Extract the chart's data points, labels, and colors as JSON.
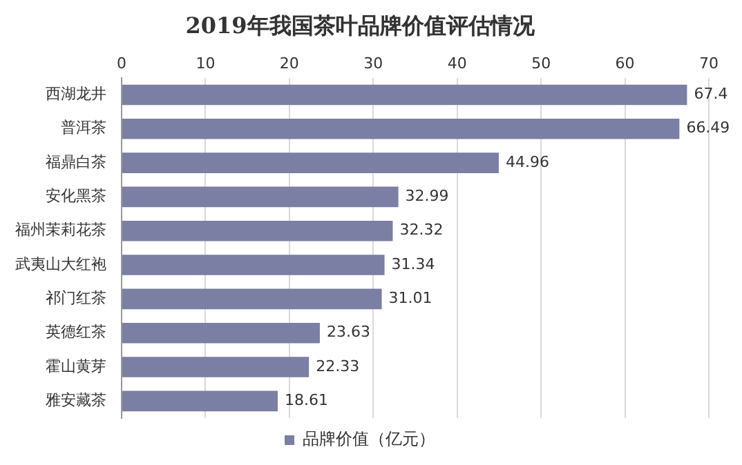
{
  "chart_data": {
    "type": "bar",
    "orientation": "horizontal",
    "title": "2019年我国茶叶品牌价值评估情况",
    "categories": [
      "西湖龙井",
      "普洱茶",
      "福鼎白茶",
      "安化黑茶",
      "福州茉莉花茶",
      "武夷山大红袍",
      "祁门红茶",
      "英德红茶",
      "霍山黄芽",
      "雅安藏茶"
    ],
    "series": [
      {
        "name": "品牌价值（亿元）",
        "color": "#7a7fa3",
        "values": [
          67.4,
          66.49,
          44.96,
          32.99,
          32.32,
          31.34,
          31.01,
          23.63,
          22.33,
          18.61
        ]
      }
    ],
    "xlim": [
      0,
      70
    ],
    "xticks": [
      0,
      10,
      20,
      30,
      40,
      50,
      60,
      70
    ],
    "grid": "x",
    "legend": "bottom",
    "data_labels": true
  }
}
